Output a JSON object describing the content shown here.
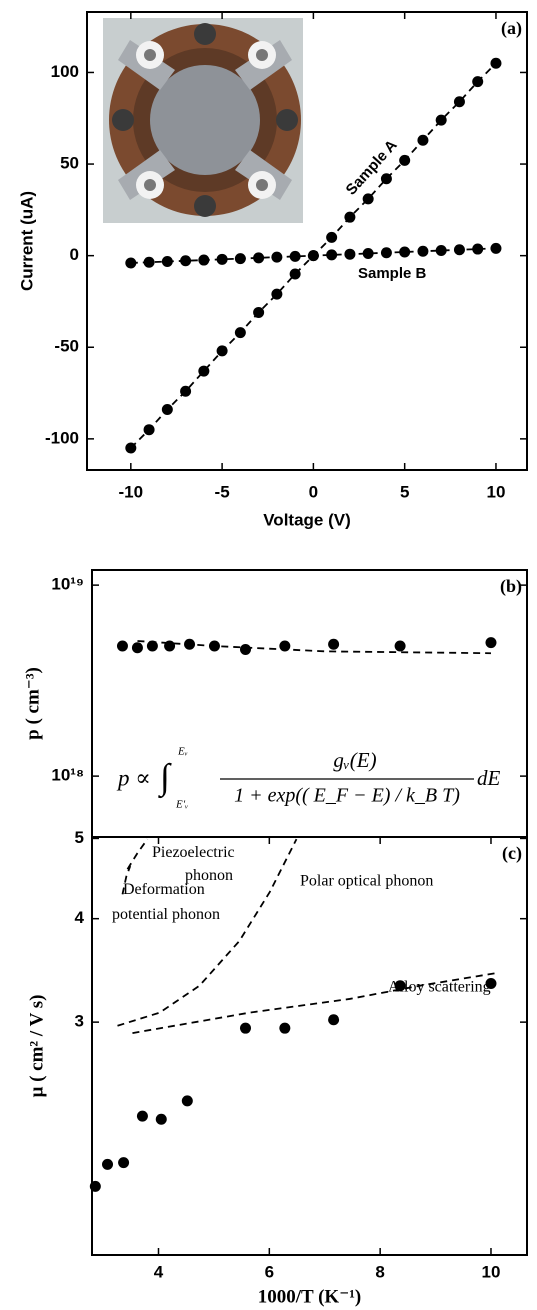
{
  "chart_data": [
    {
      "type": "line",
      "panel_label": "(a)",
      "x_label": "Voltage (V)",
      "y_label": "Current (uA)",
      "xlim": [
        -12.4,
        11.7
      ],
      "ylim": [
        -117,
        133
      ],
      "xticks": [
        -10,
        -5,
        0,
        5,
        10
      ],
      "yticks": [
        -100,
        -50,
        0,
        50,
        100
      ],
      "x": [
        -10,
        -9,
        -8,
        -7,
        -6,
        -5,
        -4,
        -3,
        -2,
        -1,
        0,
        1,
        2,
        3,
        4,
        5,
        6,
        7,
        8,
        9,
        10
      ],
      "series": [
        {
          "name": "Sample A",
          "color": "#000000",
          "marker": "circle",
          "linestyle": "dashed",
          "values": [
            -105,
            -95,
            -84,
            -74,
            -63,
            -52,
            -42,
            -31,
            -21,
            -10,
            0,
            10,
            21,
            31,
            42,
            52,
            63,
            74,
            84,
            95,
            105
          ]
        },
        {
          "name": "Sample B",
          "color": "#000000",
          "marker": "circle",
          "linestyle": "dashed",
          "values": [
            -4,
            -3.6,
            -3.2,
            -2.8,
            -2.4,
            -2,
            -1.6,
            -1.2,
            -0.8,
            -0.4,
            0,
            0.4,
            0.8,
            1.2,
            1.6,
            2,
            2.4,
            2.8,
            3.2,
            3.6,
            4
          ]
        }
      ]
    },
    {
      "type": "line",
      "panel_label": "(b)",
      "y_label": "p ( cm⁻³)",
      "yscale": "log",
      "xlim": [
        2.8,
        10.65
      ],
      "ylim": [
        4.8e+17,
        1.2e+19
      ],
      "yticks": [
        {
          "value": 1e+19,
          "label": "10¹⁹"
        },
        {
          "value": 1e+18,
          "label": "10¹⁸"
        }
      ],
      "formula": {
        "lhs": "p ∝",
        "integral": "∫",
        "upper": "Eᵥ",
        "lower": "E'ᵥ",
        "numerator": "gᵥ(E)",
        "denominator": "1 + exp(( E_F − E) / k_B T)",
        "differential": "dE"
      },
      "series": [
        {
          "color": "#000000",
          "marker": "circle",
          "x": [
            3.35,
            3.62,
            3.89,
            4.2,
            4.56,
            5.01,
            5.57,
            6.28,
            7.16,
            8.36,
            10.0
          ],
          "values": [
            4.8e+18,
            4.7e+18,
            4.8e+18,
            4.8e+18,
            4.9e+18,
            4.8e+18,
            4.6e+18,
            4.8e+18,
            4.9e+18,
            4.8e+18,
            5e+18
          ]
        },
        {
          "color": "#000000",
          "linestyle": "dashed",
          "x": [
            3.62,
            5,
            7,
            10
          ],
          "values": [
            5.1e+18,
            4.8e+18,
            4.5e+18,
            4.4e+18
          ]
        }
      ]
    },
    {
      "type": "line",
      "panel_label": "(c)",
      "x_label": "1000/T (K⁻¹)",
      "y_label": "μ ( cm² / V s)",
      "yscale": "log",
      "xlim": [
        2.8,
        10.65
      ],
      "ylim": [
        1.57,
        5.02
      ],
      "xticks": [
        4,
        6,
        8,
        10
      ],
      "yticks": [
        3,
        4,
        5
      ],
      "series": [
        {
          "color": "#000000",
          "marker": "circle",
          "x": [
            2.86,
            3.08,
            3.37,
            3.71,
            4.05,
            4.52,
            5.57,
            6.28,
            7.16,
            8.36,
            10.0
          ],
          "values": [
            1.9,
            2.02,
            2.03,
            2.31,
            2.29,
            2.41,
            2.95,
            2.95,
            3.02,
            3.32,
            3.34
          ]
        },
        {
          "name": "Deformation potential phonon",
          "color": "#000000",
          "linestyle": "dashed",
          "x": [
            3.35,
            3.42,
            3.49
          ],
          "values": [
            4.28,
            4.5,
            4.63
          ]
        },
        {
          "name": "Piezoelectric phonon",
          "color": "#000000",
          "linestyle": "dashed",
          "x": [
            3.44,
            3.62,
            3.8
          ],
          "values": [
            4.59,
            4.8,
            4.99
          ]
        },
        {
          "name": "Polar optical phonon",
          "color": "#000000",
          "linestyle": "dashed",
          "x": [
            3.26,
            4.02,
            4.74,
            5.46,
            6.01,
            6.49
          ],
          "values": [
            2.97,
            3.08,
            3.32,
            3.76,
            4.31,
            4.99
          ]
        },
        {
          "name": "Alloy scattering",
          "color": "#000000",
          "linestyle": "dashed",
          "x": [
            3.53,
            5.64,
            7.45,
            8.72,
            10.11
          ],
          "values": [
            2.91,
            3.08,
            3.2,
            3.32,
            3.44
          ]
        }
      ]
    }
  ]
}
